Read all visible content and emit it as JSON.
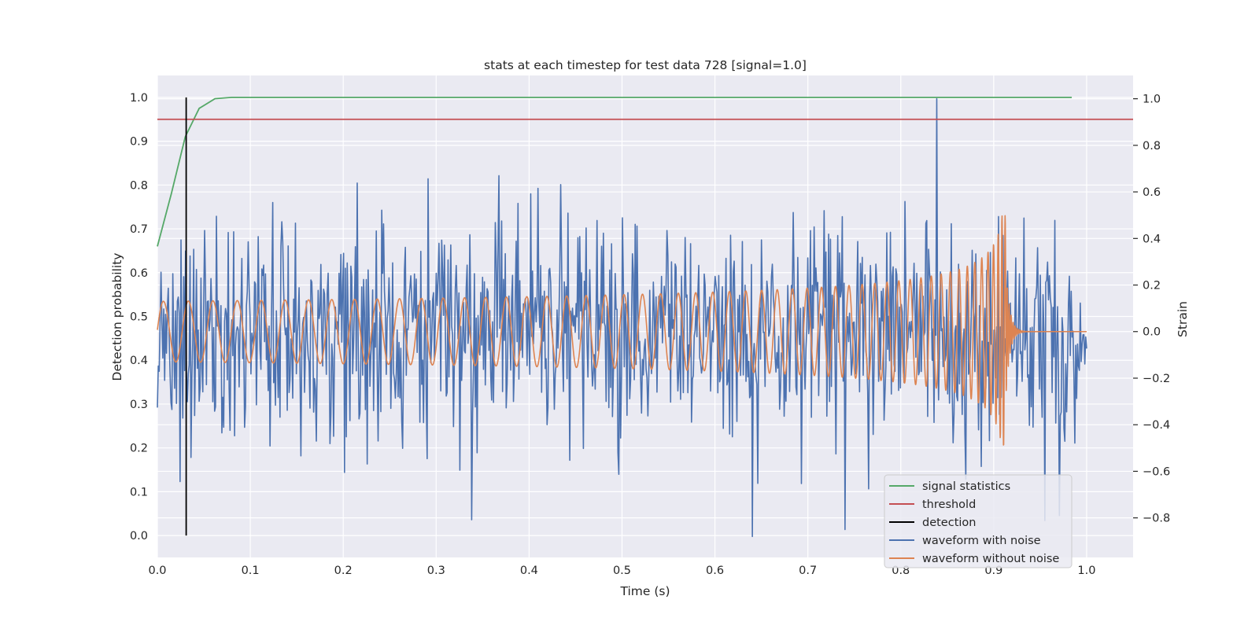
{
  "chart_data": {
    "type": "line",
    "title": "stats at each timestep for test data 728 [signal=1.0]",
    "xlabel": "Time (s)",
    "ylabel_left": "Detection probability",
    "ylabel_right": "Strain",
    "xlim": [
      0.0,
      1.05
    ],
    "ylim_left": [
      -0.05,
      1.05
    ],
    "ylim_right": [
      -0.97,
      1.1
    ],
    "xticks": [
      0.0,
      0.1,
      0.2,
      0.3,
      0.4,
      0.5,
      0.6,
      0.7,
      0.8,
      0.9,
      1.0
    ],
    "xtick_labels": [
      "0.0",
      "0.1",
      "0.2",
      "0.3",
      "0.4",
      "0.5",
      "0.6",
      "0.7",
      "0.8",
      "0.9",
      "1.0"
    ],
    "yticks_left": [
      0.0,
      0.1,
      0.2,
      0.3,
      0.4,
      0.5,
      0.6,
      0.7,
      0.8,
      0.9,
      1.0
    ],
    "ytick_labels_left": [
      "0.0",
      "0.1",
      "0.2",
      "0.3",
      "0.4",
      "0.5",
      "0.6",
      "0.7",
      "0.8",
      "0.9",
      "1.0"
    ],
    "yticks_right": [
      -0.8,
      -0.6,
      -0.4,
      -0.2,
      0.0,
      0.2,
      0.4,
      0.6,
      0.8,
      1.0
    ],
    "ytick_labels_right": [
      "−0.8",
      "−0.6",
      "−0.4",
      "−0.2",
      "0.0",
      "0.2",
      "0.4",
      "0.6",
      "0.8",
      "1.0"
    ],
    "grid": true,
    "legend_position": "bottom-right",
    "colors": {
      "background": "#eaeaf2",
      "grid": "#ffffff",
      "signal_statistics": "#55a868",
      "threshold": "#c44e52",
      "detection": "#000000",
      "waveform_with_noise": "#4c72b0",
      "waveform_without_noise": "#dd8452"
    },
    "series": [
      {
        "name": "signal statistics",
        "axis": "left",
        "color": "#55a868",
        "x": [
          0.0,
          0.015,
          0.03,
          0.045,
          0.062,
          0.08,
          0.2,
          0.4,
          0.6,
          0.8,
          0.984
        ],
        "y": [
          0.66,
          0.78,
          0.91,
          0.975,
          0.997,
          1.0,
          1.0,
          1.0,
          1.0,
          1.0,
          1.0
        ]
      },
      {
        "name": "threshold",
        "axis": "left",
        "color": "#c44e52",
        "x": [
          0.0,
          1.05
        ],
        "y": [
          0.95,
          0.95
        ]
      },
      {
        "name": "detection",
        "axis": "left",
        "color": "#000000",
        "x": [
          0.031,
          0.031
        ],
        "y": [
          0.0,
          1.0
        ]
      },
      {
        "name": "waveform with noise",
        "axis": "right",
        "color": "#4c72b0",
        "x_range": [
          0.0,
          1.0
        ],
        "n_points": 1024,
        "amplitude_std": 0.24,
        "max": 1.0,
        "min": -0.88
      },
      {
        "name": "waveform without noise",
        "axis": "right",
        "color": "#dd8452",
        "x_range": [
          0.0,
          1.0
        ],
        "start_amplitude": 0.13,
        "peak_amplitude": 0.5,
        "start_frequency_hz": 37,
        "merger_time": 0.913
      }
    ],
    "legend": [
      {
        "label": "signal statistics",
        "color": "#55a868"
      },
      {
        "label": "threshold",
        "color": "#c44e52"
      },
      {
        "label": "detection",
        "color": "#000000"
      },
      {
        "label": "waveform with noise",
        "color": "#4c72b0"
      },
      {
        "label": "waveform without noise",
        "color": "#dd8452"
      }
    ]
  }
}
